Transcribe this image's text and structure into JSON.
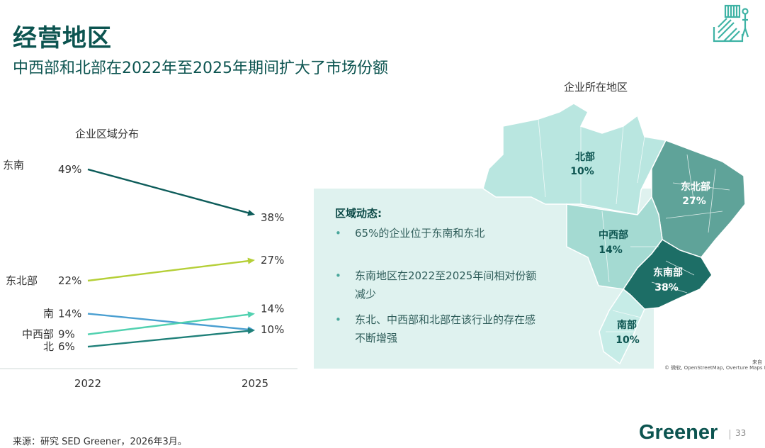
{
  "header": {
    "title": "经营地区",
    "subtitle": "中西部和北部在2022年至2025年期间扩大了市场份额"
  },
  "chart_data": {
    "type": "line",
    "title": "企业区域分布",
    "x": [
      "2022",
      "2025"
    ],
    "ylim": [
      0,
      55
    ],
    "series": [
      {
        "name": "东南",
        "values": [
          49,
          38
        ],
        "labels": [
          "49%",
          "38%"
        ],
        "color": "#0d5c5a"
      },
      {
        "name": "东北部",
        "values": [
          22,
          27
        ],
        "labels": [
          "22%",
          "27%"
        ],
        "color": "#b5cf37"
      },
      {
        "name": "南",
        "values": [
          14,
          10
        ],
        "labels": [
          "14%",
          "10%"
        ],
        "color": "#4a9fd1"
      },
      {
        "name": "中西部",
        "values": [
          9,
          14
        ],
        "labels": [
          "9%",
          "14%"
        ],
        "color": "#52d1b0"
      },
      {
        "name": "北",
        "values": [
          6,
          10
        ],
        "labels": [
          "6%",
          ""
        ],
        "color": "#1f8079"
      }
    ]
  },
  "insights": {
    "title": "区域动态:",
    "bullets": [
      "65%的企业位于东南和东北",
      "东南地区在2022至2025年间相对份额减少",
      "东北、中西部和北部在该行业的存在感不断增强"
    ],
    "bullet_symbol": "•"
  },
  "map": {
    "title": "企业所在地区",
    "regions": [
      {
        "name": "北部",
        "value": "10%",
        "color": "#b9e6e0"
      },
      {
        "name": "东北部",
        "value": "27%",
        "color": "#5fa399"
      },
      {
        "name": "中西部",
        "value": "14%",
        "color": "#a4dad2"
      },
      {
        "name": "东南部",
        "value": "38%",
        "color": "#1d6e66"
      },
      {
        "name": "南部",
        "value": "10%",
        "color": "#c6ece7"
      }
    ],
    "credit": "© 微软, OpenStreetMap, Overture Maps Fund",
    "credit_top": "来自"
  },
  "footer": {
    "source": "来源：研究 SED Greener，2026年3月。",
    "brand": "Greener",
    "page": "33"
  },
  "colors": {
    "brand": "#0c5450",
    "panel": "#dff2ef"
  }
}
